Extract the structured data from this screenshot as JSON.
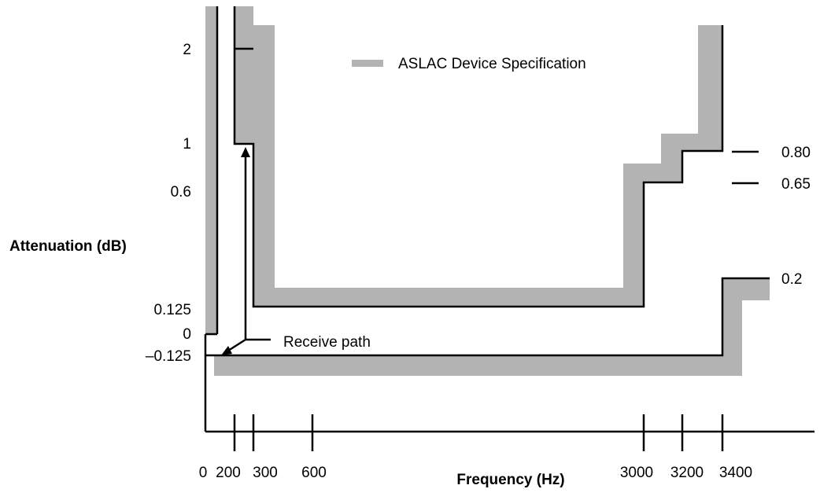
{
  "x_axis": {
    "title": "Frequency (Hz)",
    "ticks": [
      "0",
      "200",
      "300",
      "600",
      "3000",
      "3200",
      "3400"
    ]
  },
  "y_axis": {
    "title": "Attenuation (dB)",
    "ticks": [
      "2",
      "1",
      "0.6",
      "0.125",
      "0",
      "–0.125"
    ]
  },
  "right_labels": [
    "0.80",
    "0.65",
    "0.2"
  ],
  "legend": {
    "label": "ASLAC Device Specification",
    "color": "#b3b3b3"
  },
  "annotation": {
    "label": "Receive path"
  },
  "colors": {
    "spec_band": "#b3b3b3",
    "receive_path": "#000000"
  }
}
